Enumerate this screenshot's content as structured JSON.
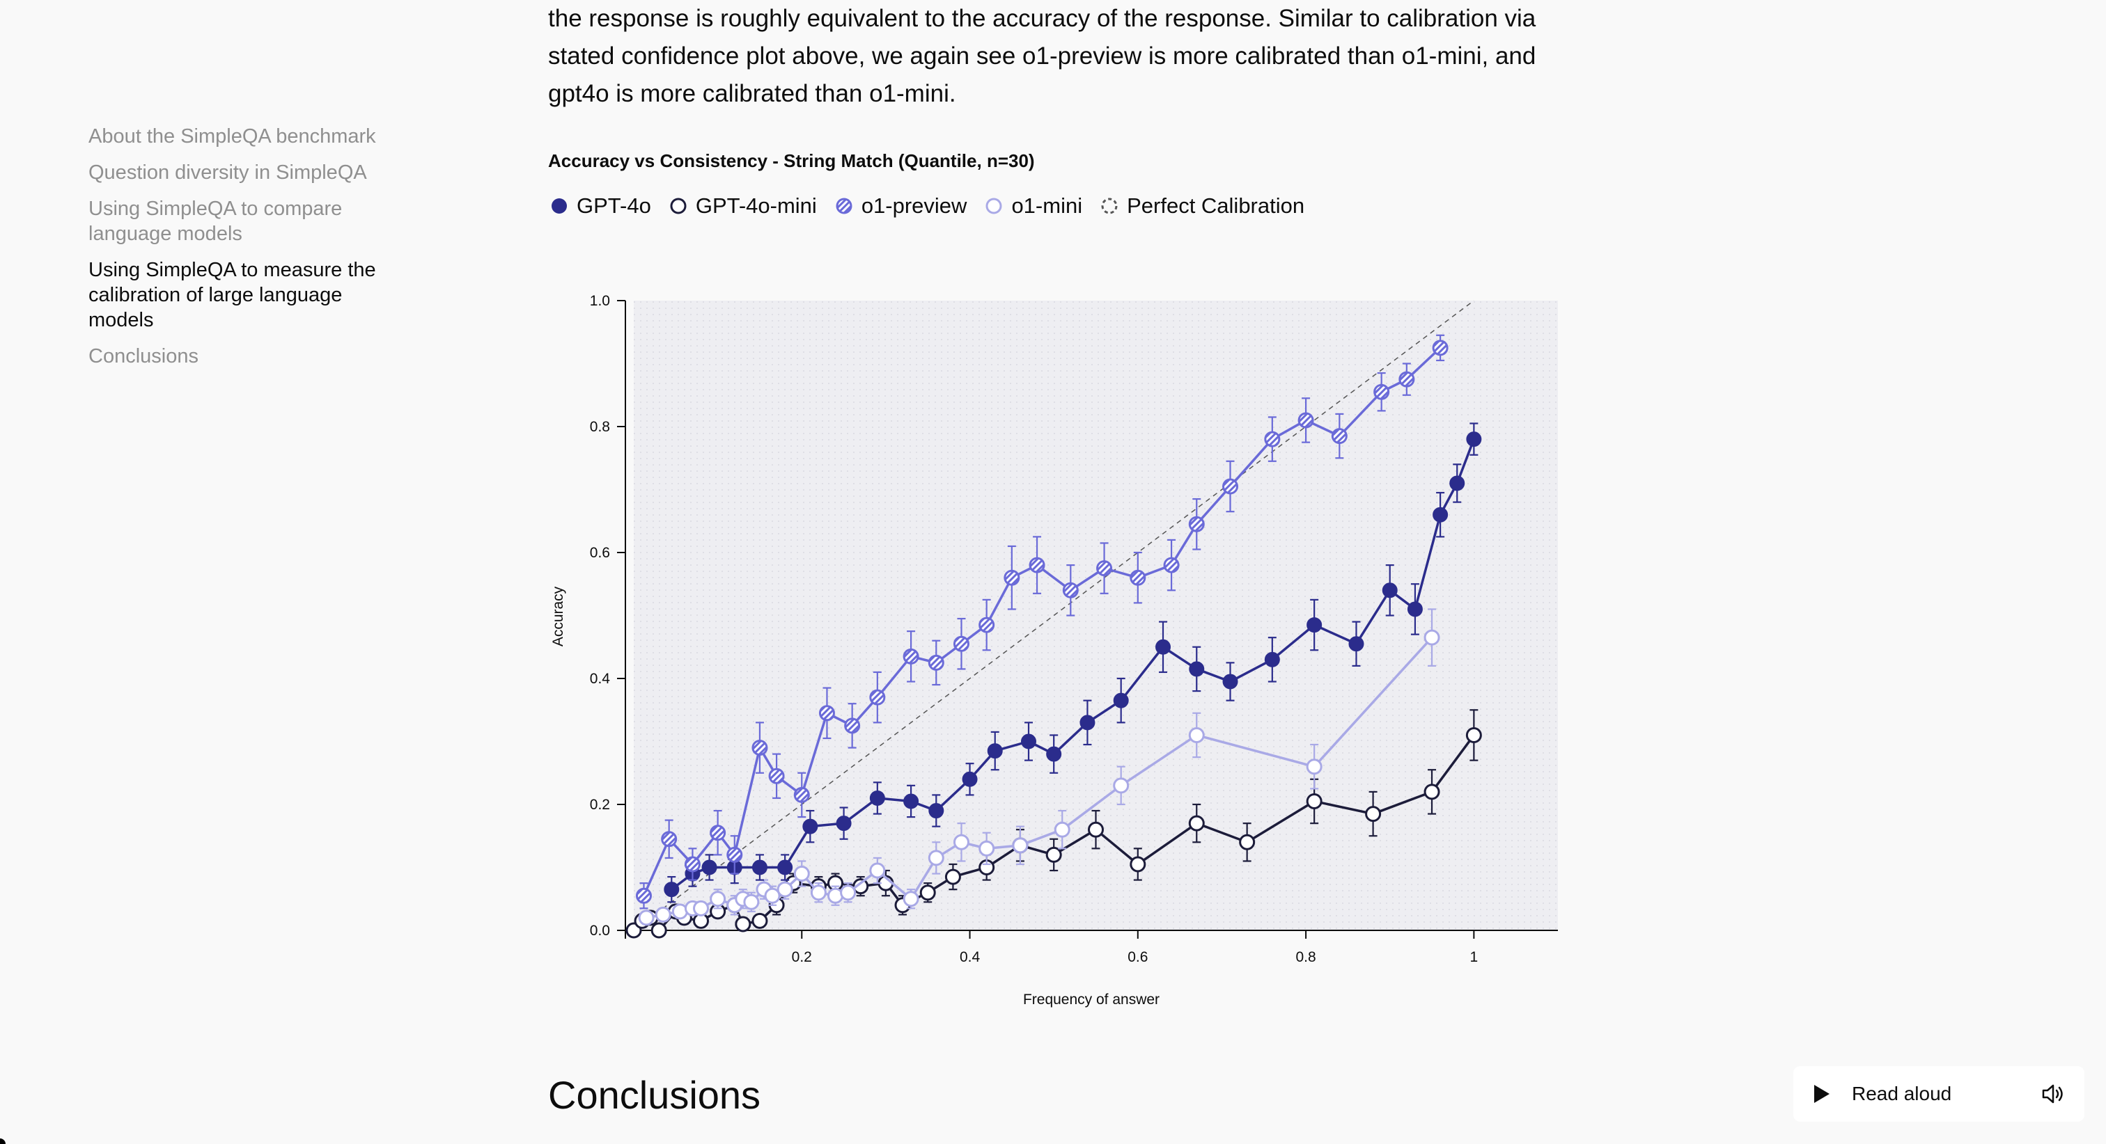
{
  "toc": {
    "items": [
      {
        "label": "About the SimpleQA benchmark",
        "active": false
      },
      {
        "label": "Question diversity in SimpleQA",
        "active": false
      },
      {
        "label": "Using SimpleQA to compare language models",
        "active": false
      },
      {
        "label": "Using SimpleQA to measure the calibration of large language models",
        "active": true
      },
      {
        "label": "Conclusions",
        "active": false
      }
    ]
  },
  "intro_text": "the response is roughly equivalent to the accuracy of the response. Similar to calibration via stated confidence plot above, we again see o1-preview is more calibrated than o1-mini, and gpt4o is more calibrated than o1-mini.",
  "section_heading": "Conclusions",
  "read_aloud": {
    "label": "Read aloud",
    "play_icon": "play-icon",
    "speaker_icon": "speaker-icon"
  },
  "colors": {
    "gpt4o": "#2b2c8c",
    "gpt4o_mini": "#1c1c3a",
    "o1_preview": "#6a6ad8",
    "o1_mini": "#a9a9e6",
    "perfect": "#555555",
    "plot_bg": "#eeeef2"
  },
  "chart_data": {
    "type": "line",
    "title": "Accuracy vs Consistency - String Match (Quantile, n=30)",
    "xlabel": "Frequency of answer",
    "ylabel": "Accuracy",
    "xlim": [
      0,
      1.1
    ],
    "ylim": [
      0,
      1.0
    ],
    "xticks": [
      "0.2",
      "0.4",
      "0.6",
      "0.8",
      "1"
    ],
    "xtick_values": [
      0.2,
      0.4,
      0.6,
      0.8,
      1.0
    ],
    "yticks": [
      "0.0",
      "0.2",
      "0.4",
      "0.6",
      "0.8",
      "1.0"
    ],
    "ytick_values": [
      0,
      0.2,
      0.4,
      0.6,
      0.8,
      1.0
    ],
    "grid": false,
    "legend_position": "top-left",
    "series": [
      {
        "name": "GPT-4o",
        "key": "gpt4o",
        "marker": "filled",
        "x": [
          0.045,
          0.07,
          0.09,
          0.12,
          0.15,
          0.18,
          0.21,
          0.25,
          0.29,
          0.33,
          0.36,
          0.4,
          0.43,
          0.47,
          0.5,
          0.54,
          0.58,
          0.63,
          0.67,
          0.71,
          0.76,
          0.81,
          0.86,
          0.9,
          0.93,
          0.96,
          0.98,
          1.0
        ],
        "y": [
          0.065,
          0.09,
          0.1,
          0.1,
          0.1,
          0.1,
          0.165,
          0.17,
          0.21,
          0.205,
          0.19,
          0.24,
          0.285,
          0.3,
          0.28,
          0.33,
          0.365,
          0.45,
          0.415,
          0.395,
          0.43,
          0.485,
          0.455,
          0.54,
          0.51,
          0.66,
          0.71,
          0.78
        ],
        "err": [
          0.02,
          0.02,
          0.02,
          0.025,
          0.02,
          0.02,
          0.025,
          0.025,
          0.025,
          0.025,
          0.025,
          0.025,
          0.03,
          0.03,
          0.03,
          0.035,
          0.035,
          0.04,
          0.035,
          0.03,
          0.035,
          0.04,
          0.035,
          0.04,
          0.04,
          0.035,
          0.03,
          0.025
        ]
      },
      {
        "name": "GPT-4o-mini",
        "key": "gpt4o_mini",
        "marker": "hollow",
        "x": [
          0.0,
          0.01,
          0.02,
          0.03,
          0.05,
          0.06,
          0.08,
          0.1,
          0.12,
          0.13,
          0.15,
          0.17,
          0.19,
          0.22,
          0.24,
          0.27,
          0.3,
          0.32,
          0.35,
          0.38,
          0.42,
          0.46,
          0.5,
          0.55,
          0.6,
          0.67,
          0.73,
          0.81,
          0.88,
          0.95,
          1.0
        ],
        "y": [
          0.0,
          0.015,
          0.02,
          0.0,
          0.03,
          0.02,
          0.015,
          0.03,
          0.04,
          0.01,
          0.015,
          0.04,
          0.075,
          0.07,
          0.075,
          0.07,
          0.075,
          0.04,
          0.06,
          0.085,
          0.1,
          0.135,
          0.12,
          0.16,
          0.105,
          0.17,
          0.14,
          0.205,
          0.185,
          0.22,
          0.31
        ],
        "err": [
          0.01,
          0.01,
          0.01,
          0.01,
          0.01,
          0.01,
          0.01,
          0.01,
          0.01,
          0.01,
          0.01,
          0.015,
          0.015,
          0.015,
          0.015,
          0.015,
          0.02,
          0.015,
          0.015,
          0.02,
          0.02,
          0.025,
          0.025,
          0.03,
          0.025,
          0.03,
          0.03,
          0.035,
          0.035,
          0.035,
          0.04
        ]
      },
      {
        "name": "o1-preview",
        "key": "o1_preview",
        "marker": "hatched",
        "x": [
          0.012,
          0.042,
          0.07,
          0.1,
          0.12,
          0.15,
          0.17,
          0.2,
          0.23,
          0.26,
          0.29,
          0.33,
          0.36,
          0.39,
          0.42,
          0.45,
          0.48,
          0.52,
          0.56,
          0.6,
          0.64,
          0.67,
          0.71,
          0.76,
          0.8,
          0.84,
          0.89,
          0.92,
          0.96
        ],
        "y": [
          0.055,
          0.145,
          0.105,
          0.155,
          0.12,
          0.29,
          0.245,
          0.215,
          0.345,
          0.325,
          0.37,
          0.435,
          0.425,
          0.455,
          0.485,
          0.56,
          0.58,
          0.54,
          0.575,
          0.56,
          0.58,
          0.645,
          0.705,
          0.78,
          0.81,
          0.785,
          0.855,
          0.875,
          0.925
        ],
        "err": [
          0.02,
          0.03,
          0.025,
          0.035,
          0.03,
          0.04,
          0.035,
          0.035,
          0.04,
          0.035,
          0.04,
          0.04,
          0.035,
          0.04,
          0.04,
          0.05,
          0.045,
          0.04,
          0.04,
          0.04,
          0.04,
          0.04,
          0.04,
          0.035,
          0.035,
          0.035,
          0.03,
          0.025,
          0.02
        ]
      },
      {
        "name": "o1-mini",
        "key": "o1_mini",
        "marker": "hollow",
        "x": [
          0.015,
          0.035,
          0.055,
          0.07,
          0.08,
          0.1,
          0.12,
          0.13,
          0.14,
          0.155,
          0.165,
          0.18,
          0.2,
          0.22,
          0.24,
          0.255,
          0.29,
          0.33,
          0.36,
          0.39,
          0.42,
          0.46,
          0.51,
          0.58,
          0.67,
          0.81,
          0.95
        ],
        "y": [
          0.02,
          0.025,
          0.03,
          0.035,
          0.035,
          0.05,
          0.04,
          0.05,
          0.045,
          0.065,
          0.055,
          0.065,
          0.09,
          0.06,
          0.055,
          0.06,
          0.095,
          0.05,
          0.115,
          0.14,
          0.13,
          0.135,
          0.16,
          0.23,
          0.31,
          0.26,
          0.465
        ],
        "err": [
          0.01,
          0.01,
          0.01,
          0.01,
          0.01,
          0.015,
          0.015,
          0.015,
          0.015,
          0.015,
          0.015,
          0.015,
          0.02,
          0.015,
          0.015,
          0.015,
          0.02,
          0.015,
          0.025,
          0.03,
          0.025,
          0.03,
          0.03,
          0.03,
          0.035,
          0.035,
          0.045
        ]
      }
    ],
    "reference": {
      "name": "Perfect Calibration",
      "key": "perfect",
      "x": [
        0.0,
        1.0
      ],
      "y": [
        0.0,
        1.0
      ]
    }
  }
}
